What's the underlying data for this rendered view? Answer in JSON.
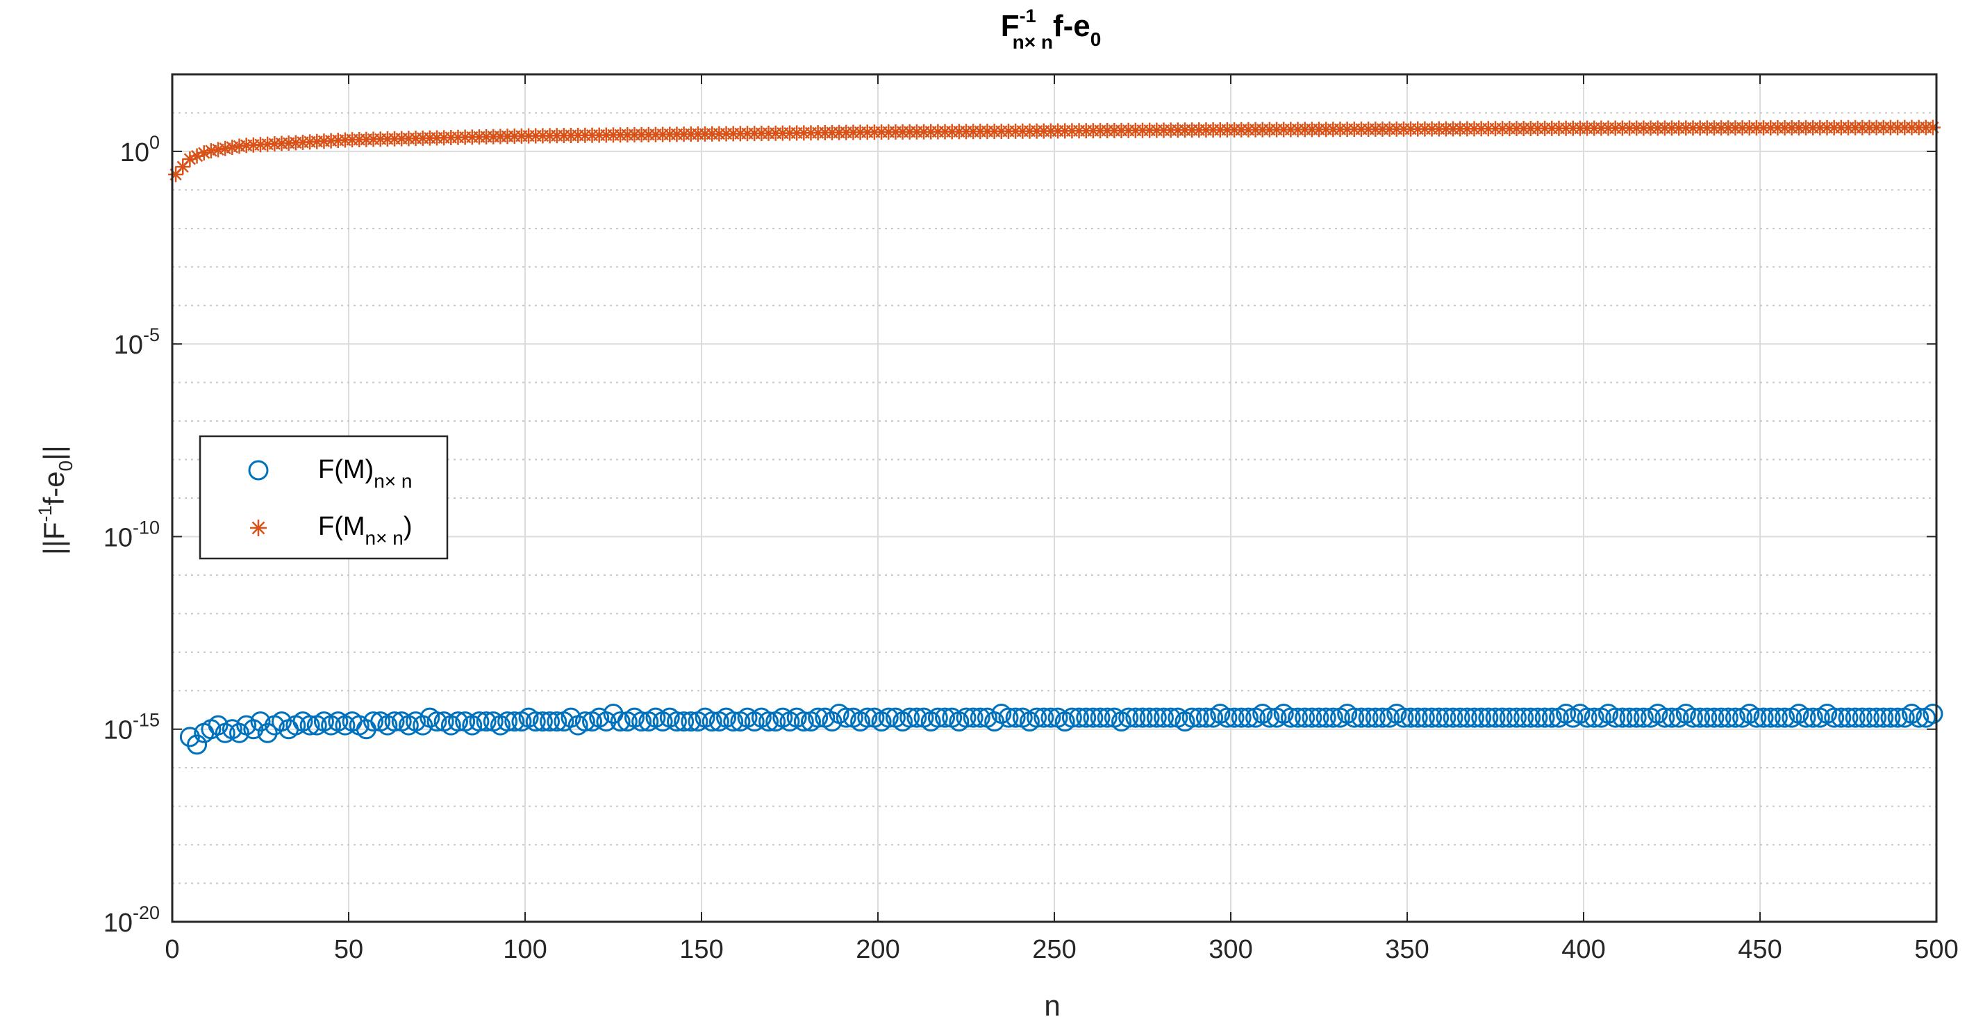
{
  "chart_data": {
    "type": "scatter",
    "title": {
      "base": "F",
      "superscript": "-1",
      "subscript": "n× n",
      "suffix": "f-e",
      "suffix_subscript": "0"
    },
    "xlabel": "n",
    "ylabel": {
      "prefix": "||F",
      "superscript": "-1",
      "middle": "f-e",
      "subscript": "0",
      "suffix": "||"
    },
    "xlim": [
      0,
      500
    ],
    "ylim_exponent": [
      -20,
      2
    ],
    "y_scale": "log",
    "grid": true,
    "minor_grid": true,
    "legend_position": "left-middle",
    "x_ticks": [
      "0",
      "50",
      "100",
      "150",
      "200",
      "250",
      "300",
      "350",
      "400",
      "450",
      "500"
    ],
    "y_ticks": [
      {
        "base": "10",
        "exp": "0",
        "exponent_value": 0
      },
      {
        "base": "10",
        "exp": "-5",
        "exponent_value": -5
      },
      {
        "base": "10",
        "exp": "-10",
        "exponent_value": -10
      },
      {
        "base": "10",
        "exp": "-15",
        "exponent_value": -15
      },
      {
        "base": "10",
        "exp": "-20",
        "exponent_value": -20
      }
    ],
    "series": [
      {
        "name": "F(M)",
        "name_subscript": "n× n",
        "name_suffix": "",
        "marker": "circle",
        "color": "#0072BD",
        "x_start": 5,
        "x_step": 2,
        "log10_values": [
          -15.2,
          -15.4,
          -15.1,
          -15.0,
          -14.9,
          -15.1,
          -15.0,
          -15.1,
          -14.9,
          -15.0,
          -14.8,
          -15.1,
          -14.9,
          -14.8,
          -15.0,
          -14.9,
          -14.8,
          -14.9,
          -14.9,
          -14.8,
          -14.9,
          -14.8,
          -14.9,
          -14.8,
          -14.9,
          -15.0,
          -14.8,
          -14.8,
          -14.9,
          -14.8,
          -14.8,
          -14.9,
          -14.8,
          -14.9,
          -14.7,
          -14.8,
          -14.8,
          -14.9,
          -14.8,
          -14.8,
          -14.9,
          -14.8,
          -14.8,
          -14.8,
          -14.9,
          -14.8,
          -14.8,
          -14.8,
          -14.7,
          -14.8,
          -14.8,
          -14.8,
          -14.8,
          -14.8,
          -14.7,
          -14.9,
          -14.8,
          -14.8,
          -14.7,
          -14.8,
          -14.6,
          -14.8,
          -14.8,
          -14.7,
          -14.8,
          -14.8,
          -14.7,
          -14.8,
          -14.7,
          -14.8,
          -14.8,
          -14.8,
          -14.8,
          -14.7,
          -14.8,
          -14.8,
          -14.7,
          -14.8,
          -14.8,
          -14.7,
          -14.8,
          -14.7,
          -14.8,
          -14.8,
          -14.7,
          -14.8,
          -14.7,
          -14.8,
          -14.8,
          -14.7,
          -14.7,
          -14.8,
          -14.6,
          -14.7,
          -14.7,
          -14.8,
          -14.7,
          -14.7,
          -14.8,
          -14.7,
          -14.7,
          -14.8,
          -14.7,
          -14.7,
          -14.7,
          -14.8,
          -14.7,
          -14.7,
          -14.7,
          -14.8,
          -14.7,
          -14.7,
          -14.7,
          -14.7,
          -14.8,
          -14.6,
          -14.7,
          -14.7,
          -14.7,
          -14.8,
          -14.7,
          -14.7,
          -14.7,
          -14.7,
          -14.8,
          -14.7,
          -14.7,
          -14.7,
          -14.7,
          -14.7,
          -14.7,
          -14.7,
          -14.8,
          -14.7,
          -14.7,
          -14.7,
          -14.7,
          -14.7,
          -14.7,
          -14.7,
          -14.7,
          -14.8,
          -14.7,
          -14.7,
          -14.7,
          -14.7,
          -14.6,
          -14.7,
          -14.7,
          -14.7,
          -14.7,
          -14.7,
          -14.6,
          -14.7,
          -14.7,
          -14.6,
          -14.7,
          -14.7,
          -14.7,
          -14.7,
          -14.7,
          -14.7,
          -14.7,
          -14.7,
          -14.6,
          -14.7,
          -14.7,
          -14.7,
          -14.7,
          -14.7,
          -14.7,
          -14.6,
          -14.7,
          -14.7,
          -14.7,
          -14.7,
          -14.7,
          -14.7,
          -14.7,
          -14.7,
          -14.7,
          -14.7,
          -14.7,
          -14.7,
          -14.7,
          -14.7,
          -14.7,
          -14.7,
          -14.7,
          -14.7,
          -14.7,
          -14.7,
          -14.7,
          -14.7,
          -14.7,
          -14.6,
          -14.7,
          -14.6,
          -14.7,
          -14.7,
          -14.7,
          -14.6,
          -14.7,
          -14.7,
          -14.7,
          -14.7,
          -14.7,
          -14.7,
          -14.6,
          -14.7,
          -14.7,
          -14.7,
          -14.6,
          -14.7,
          -14.7,
          -14.7,
          -14.7,
          -14.7,
          -14.7,
          -14.7,
          -14.7,
          -14.6,
          -14.7,
          -14.7,
          -14.7,
          -14.7,
          -14.7,
          -14.7,
          -14.6,
          -14.7,
          -14.7,
          -14.7,
          -14.6,
          -14.7,
          -14.7,
          -14.7,
          -14.7,
          -14.7,
          -14.7,
          -14.7,
          -14.7,
          -14.7,
          -14.7,
          -14.7,
          -14.6,
          -14.7,
          -14.7,
          -14.6,
          -14.7,
          -14.7,
          -14.7
        ]
      },
      {
        "name": "F(M",
        "name_subscript": "n× n",
        "name_suffix": ")",
        "marker": "star",
        "color": "#D95319",
        "x_start": 1,
        "x_step": 2,
        "log10_curve": {
          "description_points": [
            [
              1,
              -0.6
            ],
            [
              5,
              -0.2
            ],
            [
              10,
              0.0
            ],
            [
              20,
              0.15
            ],
            [
              50,
              0.3
            ],
            [
              100,
              0.4
            ],
            [
              200,
              0.5
            ],
            [
              300,
              0.56
            ],
            [
              400,
              0.6
            ],
            [
              500,
              0.62
            ]
          ]
        }
      }
    ]
  }
}
